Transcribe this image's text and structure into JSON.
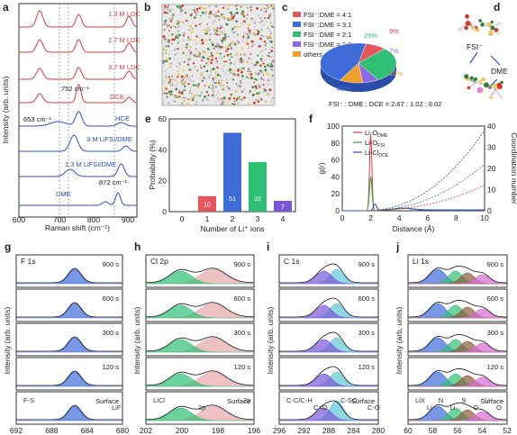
{
  "colors": {
    "red": "#e0393e",
    "blue": "#2b50c8",
    "green": "#2e9e3e",
    "pink": "#e7a8a8",
    "bar": "#3f6bd9",
    "barOrange": "#e5565a",
    "purple": "#7b57d6",
    "cyan": "#5ec8d8",
    "orange": "#f0a030",
    "black": "#000000"
  },
  "panel_a": {
    "label": "a",
    "ylabel": "Intensity (arb. units)",
    "xlabel": "Raman shift (cm⁻¹)",
    "xticks": [
      "600",
      "700",
      "800",
      "900"
    ],
    "traces": [
      "1.3 M LDC",
      "2.7 M LDC",
      "3.7 M LDC",
      "DCE",
      "HCE",
      "3 M LiFSI/DME",
      "1.3 M LiFSI/DME",
      "DME"
    ],
    "annotations": [
      "752 cm⁻¹",
      "653 cm⁻¹",
      "872 cm⁻¹"
    ]
  },
  "panel_b": {
    "label": "b"
  },
  "panel_c": {
    "label": "c",
    "legend": [
      "FSI⁻:DME = 4:1",
      "FSI⁻:DME = 3:1",
      "FSI⁻:DME = 2:1",
      "FSI⁻:DME = 1:2",
      "others"
    ],
    "pct": [
      "9%",
      "29%",
      "7%",
      "10%",
      "45%"
    ],
    "footer": "FSI⁻ : DME : DCE = 2.67 : 1.02 : 0.02"
  },
  "panel_d": {
    "label": "d",
    "labels": [
      "FSI⁻",
      "DME"
    ]
  },
  "panel_e": {
    "label": "e",
    "ylabel": "Probability (%)",
    "xlabel": "Number of Li⁺ ions",
    "yticks": [
      "0",
      "20",
      "40",
      "60"
    ],
    "xticks": [
      "0",
      "1",
      "2",
      "3",
      "4"
    ],
    "values": [
      "10",
      "51",
      "32",
      "7"
    ]
  },
  "panel_f": {
    "label": "f",
    "ylabel_left": "g(r)",
    "ylabel_right": "Coordination number",
    "xlabel": "Distance (Å)",
    "yticks_left": [
      "0",
      "20",
      "40",
      "60",
      "80",
      "100"
    ],
    "yticks_right": [
      "0",
      "10",
      "20",
      "30",
      "40"
    ],
    "xticks": [
      "0",
      "2",
      "4",
      "6",
      "8",
      "10"
    ],
    "legend": [
      "Li-O",
      "Li-O",
      "Li-Cl"
    ],
    "legend_sub": [
      "DME",
      "FSI",
      "DCE"
    ]
  },
  "panel_g": {
    "label": "g",
    "title": "F 1s",
    "xticks": [
      "692",
      "688",
      "684",
      "680"
    ],
    "rows": [
      "900 s",
      "600 s",
      "300 s",
      "120 s",
      "Surface"
    ],
    "annot": [
      "F-S",
      "LiF"
    ]
  },
  "panel_h": {
    "label": "h",
    "title": "Cl 2p",
    "xticks": [
      "202",
      "200",
      "198",
      "196"
    ],
    "rows": [
      "900 s",
      "600 s",
      "300 s",
      "120 s",
      "Surface"
    ],
    "annot": [
      "LiCl",
      "2p",
      "2p"
    ]
  },
  "panel_i": {
    "label": "i",
    "title": "C 1s",
    "xticks": [
      "296",
      "292",
      "288",
      "284",
      "280"
    ],
    "rows": [
      "900 s",
      "600 s",
      "300 s",
      "120 s",
      "Surface"
    ],
    "annot": [
      "C-C/C-H",
      "C=O",
      "C-SO",
      "C-O"
    ]
  },
  "panel_j": {
    "label": "j",
    "title": "Li 1s",
    "xticks": [
      "60",
      "58",
      "56",
      "54",
      "52"
    ],
    "rows": [
      "900 s",
      "600 s",
      "300 s",
      "120 s",
      "Surface"
    ],
    "annot": [
      "LiX",
      "Li",
      "N",
      "Li",
      "S",
      "O",
      "Li",
      "O"
    ]
  },
  "xps_ylabel": "Intensity (arb. units)",
  "xps_xlabel": "Binding energy (eV)"
}
